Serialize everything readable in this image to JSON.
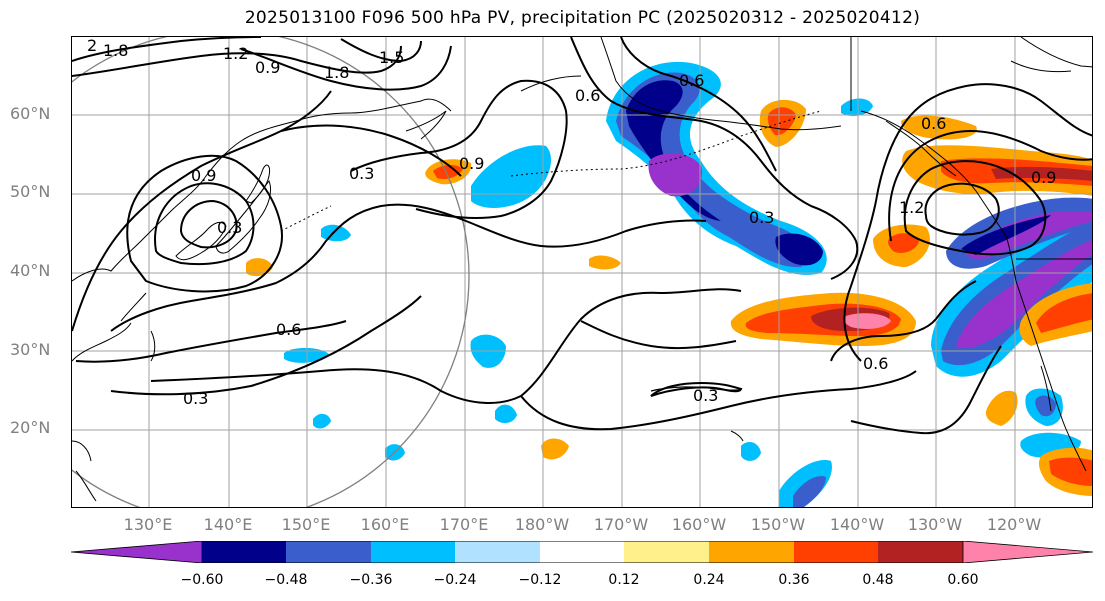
{
  "title": "2025013100 F096 500 hPa PV, precipitation PC (2025020312 - 2025020412)",
  "map": {
    "lat_labels": [
      "60°N",
      "50°N",
      "40°N",
      "30°N",
      "20°N"
    ],
    "lon_labels": [
      "130°E",
      "140°E",
      "150°E",
      "160°E",
      "170°E",
      "180°W",
      "170°W",
      "160°W",
      "150°W",
      "140°W",
      "130°W",
      "120°W"
    ],
    "contour_labels": [
      "2",
      "1.8",
      "1.2",
      "0.9",
      "1.8",
      "1.5",
      "0.9",
      "0.3",
      "0.3",
      "0.6",
      "0.3",
      "0.6",
      "0.9",
      "0.6",
      "0.3",
      "1.2",
      "0.6",
      "0.9",
      "0.3",
      "0.6"
    ]
  },
  "colorbar": {
    "colors": [
      "#9932cc",
      "#00008b",
      "#3a5fcd",
      "#00bfff",
      "#b0e2ff",
      "#ffffff",
      "#fff08c",
      "#ffa500",
      "#ff4000",
      "#b22222",
      "#ff82ab"
    ],
    "tick_labels": [
      "−0.60",
      "−0.48",
      "−0.36",
      "−0.24",
      "−0.12",
      "0.12",
      "0.24",
      "0.36",
      "0.48",
      "0.60"
    ]
  }
}
